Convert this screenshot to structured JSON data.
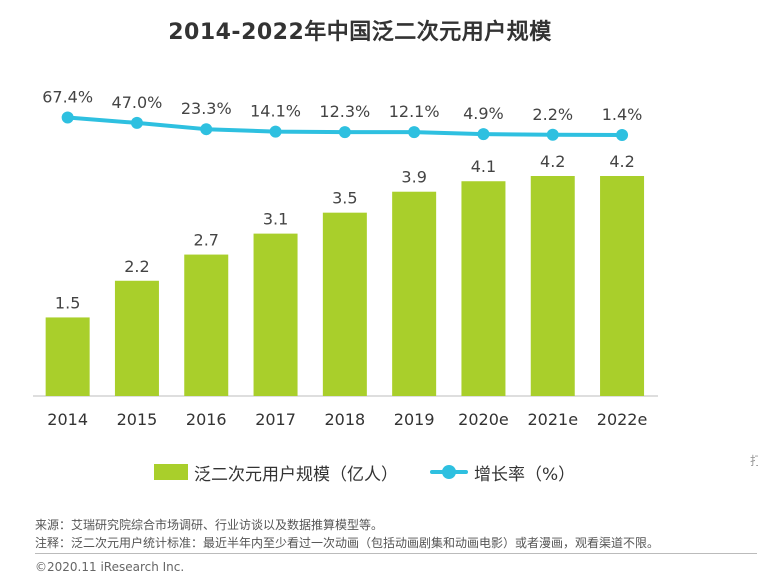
{
  "chart_data": {
    "type": "bar+line",
    "title": "2014-2022年中国泛二次元用户规模",
    "categories": [
      "2014",
      "2015",
      "2016",
      "2017",
      "2018",
      "2019",
      "2020e",
      "2021e",
      "2022e"
    ],
    "series": [
      {
        "name": "泛二次元用户规模（亿人）",
        "type": "bar",
        "values": [
          1.5,
          2.2,
          2.7,
          3.1,
          3.5,
          3.9,
          4.1,
          4.2,
          4.2
        ],
        "labels": [
          "1.5",
          "2.2",
          "2.7",
          "3.1",
          "3.5",
          "3.9",
          "4.1",
          "4.2",
          "4.2"
        ],
        "color": "#a9cf2b"
      },
      {
        "name": "增长率（%）",
        "type": "line",
        "values": [
          67.4,
          47.0,
          23.3,
          14.1,
          12.3,
          12.1,
          4.9,
          2.2,
          1.4
        ],
        "labels": [
          "67.4%",
          "47.0%",
          "23.3%",
          "14.1%",
          "12.3%",
          "12.1%",
          "4.9%",
          "2.2%",
          "1.4%"
        ],
        "color": "#2ec0e0"
      }
    ],
    "legend_position": "bottom",
    "grid": false
  },
  "footer": {
    "source": "来源：艾瑞研究院综合市场调研、行业访谈以及数据推算模型等。",
    "note": "注释：泛二次元用户统计标准：最近半年内至少看过一次动画（包括动画剧集和动画电影）或者漫画，观看渠道不限。",
    "copyright": "©2020.11 iResearch Inc."
  },
  "edge_mark": "打"
}
